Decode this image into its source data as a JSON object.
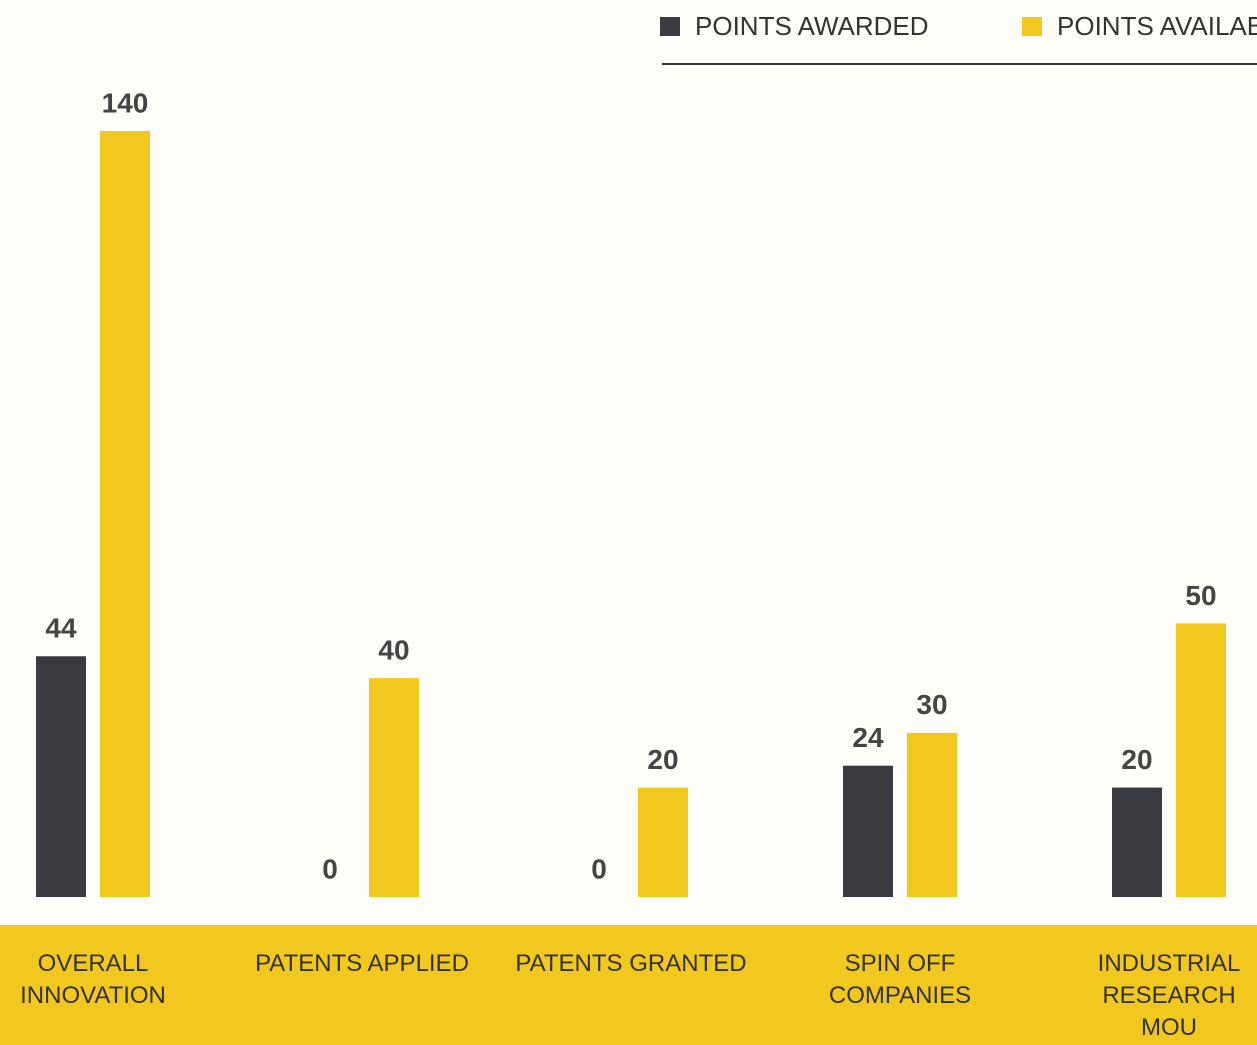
{
  "chart_data": {
    "type": "bar",
    "categories": [
      "OVERALL INNOVATION",
      "PATENTS APPLIED",
      "PATENTS GRANTED",
      "SPIN OFF COMPANIES",
      "INDUSTRIAL RESEARCH MOU"
    ],
    "series": [
      {
        "name": "POINTS AWARDED",
        "color": "#3a3b40",
        "values": [
          44,
          0,
          0,
          24,
          20
        ]
      },
      {
        "name": "POINTS AVAILABLE",
        "color": "#f2c81e",
        "values": [
          140,
          40,
          20,
          30,
          50
        ]
      }
    ]
  }
}
